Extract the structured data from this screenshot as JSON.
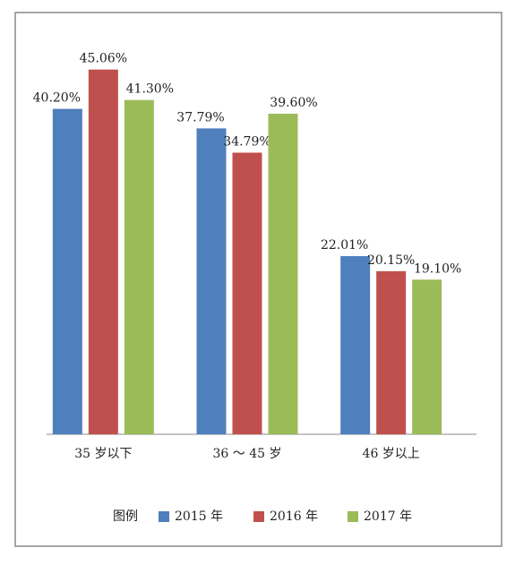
{
  "chart_data": {
    "type": "bar",
    "categories": [
      "35 岁以下",
      "36 ～ 45 岁",
      "46 岁以上"
    ],
    "series": [
      {
        "name": "2015 年",
        "color": "#4f7fbc",
        "values": [
          40.2,
          37.79,
          22.01
        ],
        "value_labels": [
          "40.20%",
          "37.79%",
          "22.01%"
        ]
      },
      {
        "name": "2016 年",
        "color": "#c0504d",
        "values": [
          45.06,
          34.79,
          20.15
        ],
        "value_labels": [
          "45.06%",
          "34.79%",
          "20.15%"
        ]
      },
      {
        "name": "2017 年",
        "color": "#9bbb59",
        "values": [
          41.3,
          39.6,
          19.1
        ],
        "value_labels": [
          "41.30%",
          "39.60%",
          "19.10%"
        ]
      }
    ],
    "ylim": [
      0,
      50
    ],
    "legend_title": "图例",
    "legend": "bottom"
  }
}
